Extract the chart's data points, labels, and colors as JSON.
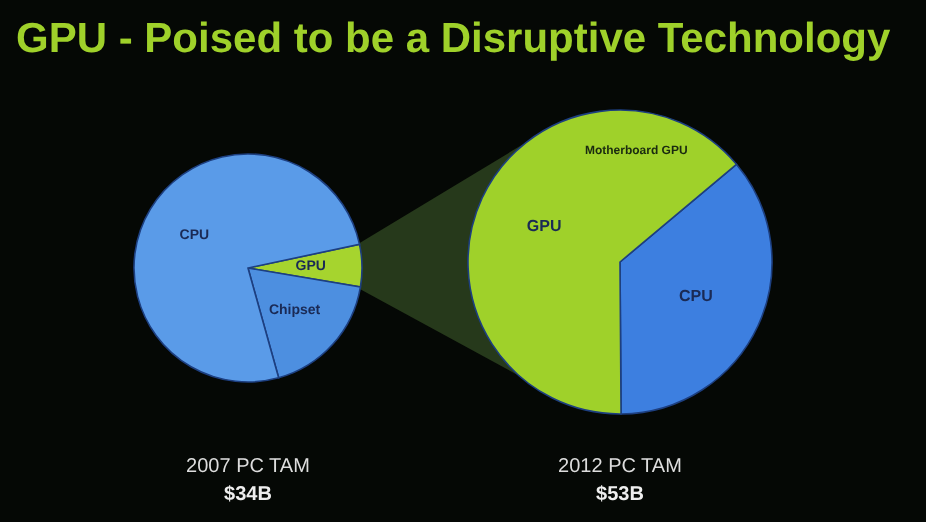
{
  "chart_data": [
    {
      "type": "pie",
      "title": "GPU - Poised to be a Disruptive Technology",
      "xlabel": "2007 PC TAM",
      "annotations": [
        "$34B"
      ],
      "categories": [
        "GPU",
        "Chipset",
        "CPU"
      ],
      "values": [
        6,
        18,
        76
      ],
      "colors": [
        "#a6d42e",
        "#4d8fe0",
        "#5a9be8"
      ]
    },
    {
      "type": "pie",
      "xlabel": "2012 PC TAM",
      "annotations": [
        "$53B",
        {
          "text": "Motherboard GPU",
          "x": "GPU"
        }
      ],
      "categories": [
        "CPU",
        "GPU"
      ],
      "values": [
        36,
        64
      ],
      "colors": [
        "#3d7fe0",
        "#9fd12a"
      ]
    }
  ]
}
